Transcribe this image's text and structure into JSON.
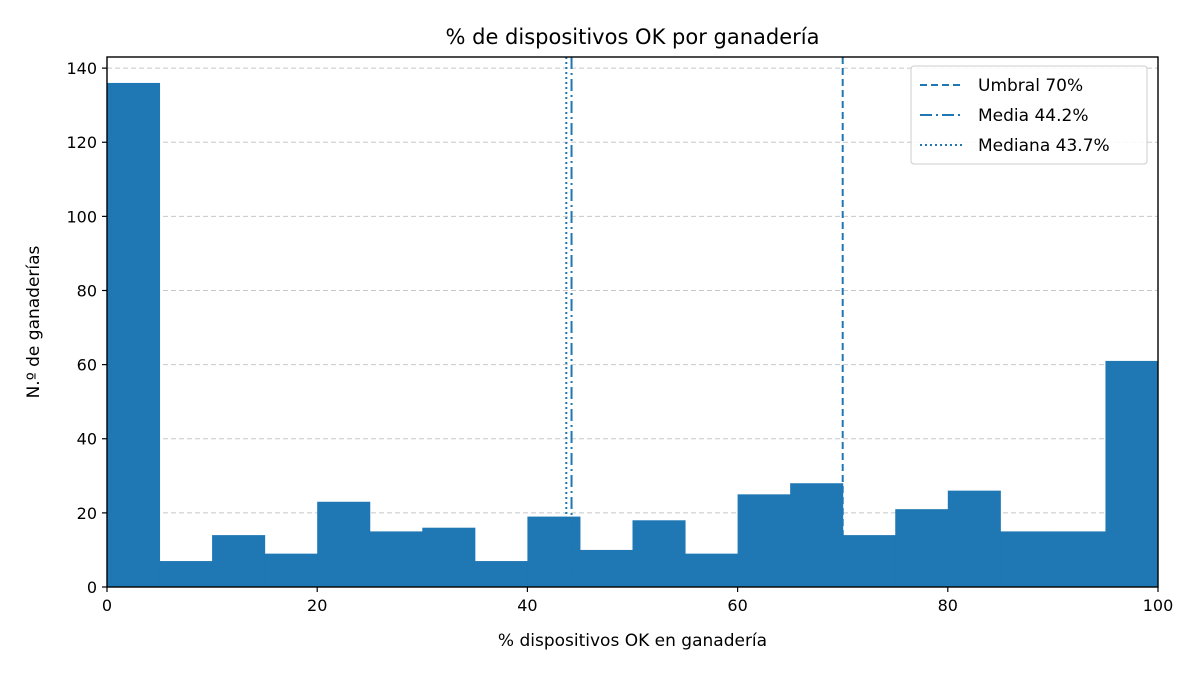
{
  "chart_data": {
    "type": "bar",
    "title": "% de dispositivos OK por ganadería",
    "xlabel": "% dispositivos OK en ganadería",
    "ylabel": "N.º de ganaderías",
    "xlim": [
      0,
      100
    ],
    "ylim": [
      0,
      143
    ],
    "xticks": [
      0,
      20,
      40,
      60,
      80,
      100
    ],
    "yticks": [
      0,
      20,
      40,
      60,
      80,
      100,
      120,
      140
    ],
    "grid": "horizontal dashed",
    "legend_position": "top-right",
    "bar_color": "#1f77b4",
    "bins": [
      {
        "x0": 0,
        "x1": 5,
        "count": 136
      },
      {
        "x0": 5,
        "x1": 10,
        "count": 7
      },
      {
        "x0": 10,
        "x1": 15,
        "count": 14
      },
      {
        "x0": 15,
        "x1": 20,
        "count": 9
      },
      {
        "x0": 20,
        "x1": 25,
        "count": 23
      },
      {
        "x0": 25,
        "x1": 30,
        "count": 15
      },
      {
        "x0": 30,
        "x1": 35,
        "count": 16
      },
      {
        "x0": 35,
        "x1": 40,
        "count": 7
      },
      {
        "x0": 40,
        "x1": 45,
        "count": 19
      },
      {
        "x0": 45,
        "x1": 50,
        "count": 10
      },
      {
        "x0": 50,
        "x1": 55,
        "count": 18
      },
      {
        "x0": 55,
        "x1": 60,
        "count": 9
      },
      {
        "x0": 60,
        "x1": 65,
        "count": 25
      },
      {
        "x0": 65,
        "x1": 70,
        "count": 28
      },
      {
        "x0": 70,
        "x1": 75,
        "count": 14
      },
      {
        "x0": 75,
        "x1": 80,
        "count": 21
      },
      {
        "x0": 80,
        "x1": 85,
        "count": 26
      },
      {
        "x0": 85,
        "x1": 90,
        "count": 15
      },
      {
        "x0": 90,
        "x1": 95,
        "count": 15
      },
      {
        "x0": 95,
        "x1": 100,
        "count": 61
      }
    ],
    "reference_lines": [
      {
        "label": "Umbral 70%",
        "x": 70,
        "style": "dashed",
        "color": "#1f77b4"
      },
      {
        "label": "Media 44.2%",
        "x": 44.2,
        "style": "dashdot",
        "color": "#1f77b4"
      },
      {
        "label": "Mediana 43.7%",
        "x": 43.7,
        "style": "dotted",
        "color": "#1f77b4"
      }
    ]
  }
}
